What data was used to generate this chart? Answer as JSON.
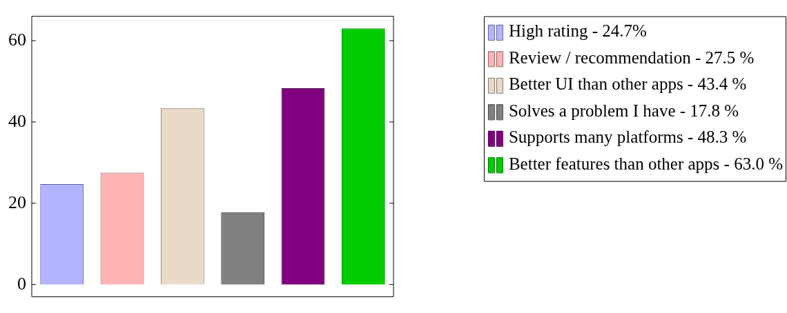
{
  "chart_data": {
    "type": "bar",
    "categories": [
      null,
      null,
      null,
      null,
      null,
      null
    ],
    "series": [
      {
        "name": "High rating - 24.7%",
        "color": "#b3b3ff",
        "values": [
          24.7,
          null,
          null,
          null,
          null,
          null
        ]
      },
      {
        "name": "Review / recommendation - 27.5 %",
        "color": "#ffb3b3",
        "values": [
          null,
          27.5,
          null,
          null,
          null,
          null
        ]
      },
      {
        "name": "Better UI than other apps - 43.4 %",
        "color": "#ead9c6",
        "values": [
          null,
          null,
          43.4,
          null,
          null,
          null
        ]
      },
      {
        "name": "Solves a problem I have - 17.8 %",
        "color": "#808080",
        "values": [
          null,
          null,
          null,
          17.8,
          null,
          null
        ]
      },
      {
        "name": "Supports many platforms - 48.3 %",
        "color": "#800080",
        "values": [
          null,
          null,
          null,
          null,
          48.3,
          null
        ]
      },
      {
        "name": "Better features than other apps - 63.0 %",
        "color": "#00cc00",
        "values": [
          null,
          null,
          null,
          null,
          null,
          63.0
        ]
      }
    ],
    "ylim": [
      -3,
      66
    ],
    "yticks": [
      0,
      20,
      40,
      60
    ],
    "stacked": true,
    "tick_labels": "y",
    "grid": false,
    "legend": "top right"
  }
}
